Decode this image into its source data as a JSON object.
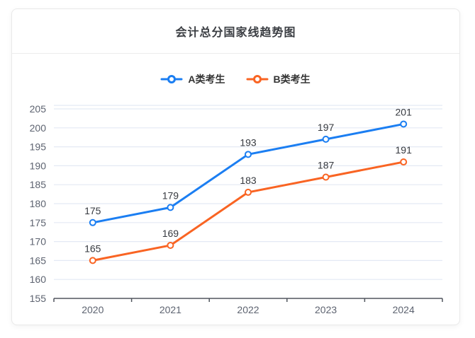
{
  "card": {
    "title": "会计总分国家线趋势图"
  },
  "chart_data": {
    "type": "line",
    "title": "会计总分国家线趋势图",
    "categories": [
      "2020",
      "2021",
      "2022",
      "2023",
      "2024"
    ],
    "series": [
      {
        "name": "A类考生",
        "color": "#1b7ef2",
        "values": [
          175,
          179,
          193,
          197,
          201
        ]
      },
      {
        "name": "B类考生",
        "color": "#f96423",
        "values": [
          165,
          169,
          183,
          187,
          191
        ]
      }
    ],
    "xlabel": "",
    "ylabel": "",
    "ylim": [
      155,
      205
    ],
    "ytick_step": 5,
    "yticks": [
      155,
      160,
      165,
      170,
      175,
      180,
      185,
      190,
      195,
      200,
      205
    ],
    "grid": true,
    "legend_position": "top",
    "marker": "hollow-circle",
    "show_point_labels": true,
    "colors": {
      "grid_line": "#e4e9f4",
      "axis_line": "#50555e",
      "axis_label": "#5d6370",
      "data_label": "#36393f",
      "marker_fill": "#ffffff"
    }
  }
}
